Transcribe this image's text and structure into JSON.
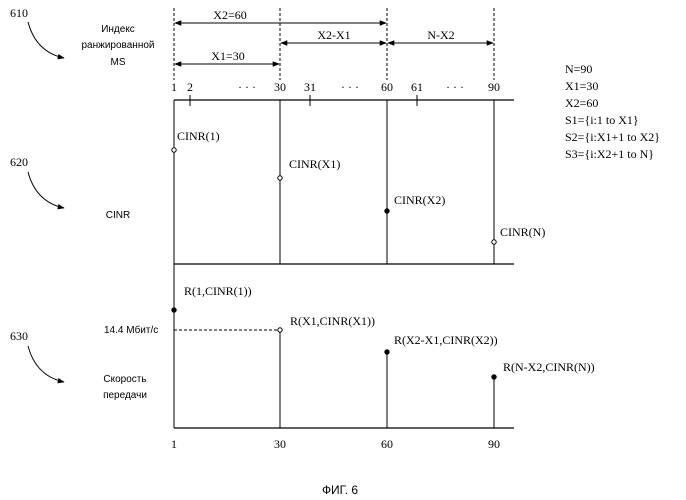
{
  "section_numbers": {
    "index": "610",
    "cinr": "620",
    "rate": "630"
  },
  "labels": {
    "index_line1": "Индекс",
    "index_line2": "ранжированной",
    "index_line3": "MS",
    "cinr": "CINR",
    "rate_line1": "Скорость",
    "rate_line2": "передачи",
    "rate_value": "14.4 Мбит/с"
  },
  "arrows": {
    "x2": "X2=60",
    "x2_minus_x1": "X2-X1",
    "n_minus_x2": "N-X2",
    "x1": "X1=30"
  },
  "top_ticks": {
    "t1": "1",
    "t2": "2",
    "dots1": "· · ·",
    "t30": "30",
    "t31": "31",
    "dots2": "· · ·",
    "t60": "60",
    "t61": "61",
    "dots3": "· · ·",
    "t90": "90"
  },
  "legend": [
    "N=90",
    "X1=30",
    "X2=60",
    "S1={i:1 to X1}",
    "S2={i:X1+1 to X2}",
    "S3={i:X2+1 to N}"
  ],
  "cinr_points": {
    "p1": "CINR(1)",
    "p30": "CINR(X1)",
    "p60": "CINR(X2)",
    "p90": "CINR(N)"
  },
  "rate_points": {
    "p1": "R(1,CINR(1))",
    "p30": "R(X1,CINR(X1))",
    "p60": "R(X2-X1,CINR(X2))",
    "p90": "R(N-X2,CINR(N))"
  },
  "bottom_ticks": {
    "b1": "1",
    "b30": "30",
    "b60": "60",
    "b90": "90"
  },
  "caption": "ФИГ. 6"
}
